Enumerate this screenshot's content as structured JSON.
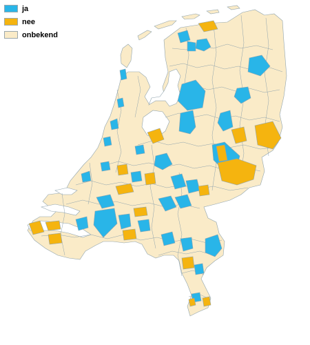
{
  "legend": [
    {
      "key": "ja",
      "label": "ja",
      "color": "#29b5e8"
    },
    {
      "key": "nee",
      "label": "nee",
      "color": "#f5b40f"
    },
    {
      "key": "onbekend",
      "label": "onbekend",
      "color": "#faebc8"
    }
  ],
  "colors": {
    "ja": "#29b5e8",
    "nee": "#f5b40f",
    "onbekend": "#faebc8",
    "border": "#8fa3ad",
    "water": "#ffffff"
  }
}
